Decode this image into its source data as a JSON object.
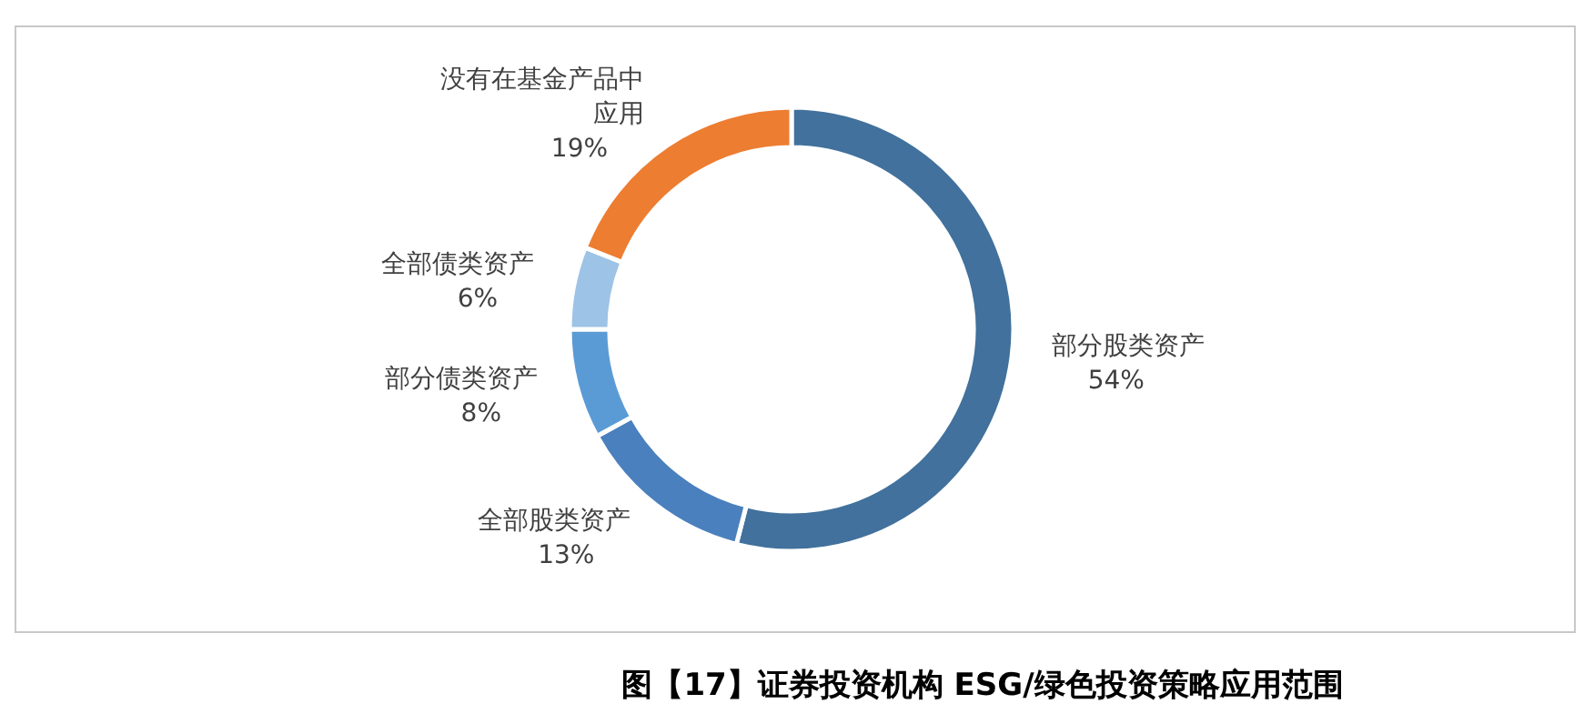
{
  "chart_data": {
    "type": "donut",
    "title": "图【17】证券投资机构 ESG/绿色投资策略应用范围",
    "categories": [
      "部分股类资产",
      "全部股类资产",
      "部分债类资产",
      "全部债类资产",
      "没有在基金产品中应用"
    ],
    "values": [
      54,
      13,
      8,
      6,
      19
    ],
    "value_labels": [
      "54%",
      "13%",
      "8%",
      "6%",
      "19%"
    ],
    "colors": [
      "#41719c",
      "#4a80bd",
      "#5b9bd5",
      "#9dc3e6",
      "#ed7d31"
    ]
  }
}
